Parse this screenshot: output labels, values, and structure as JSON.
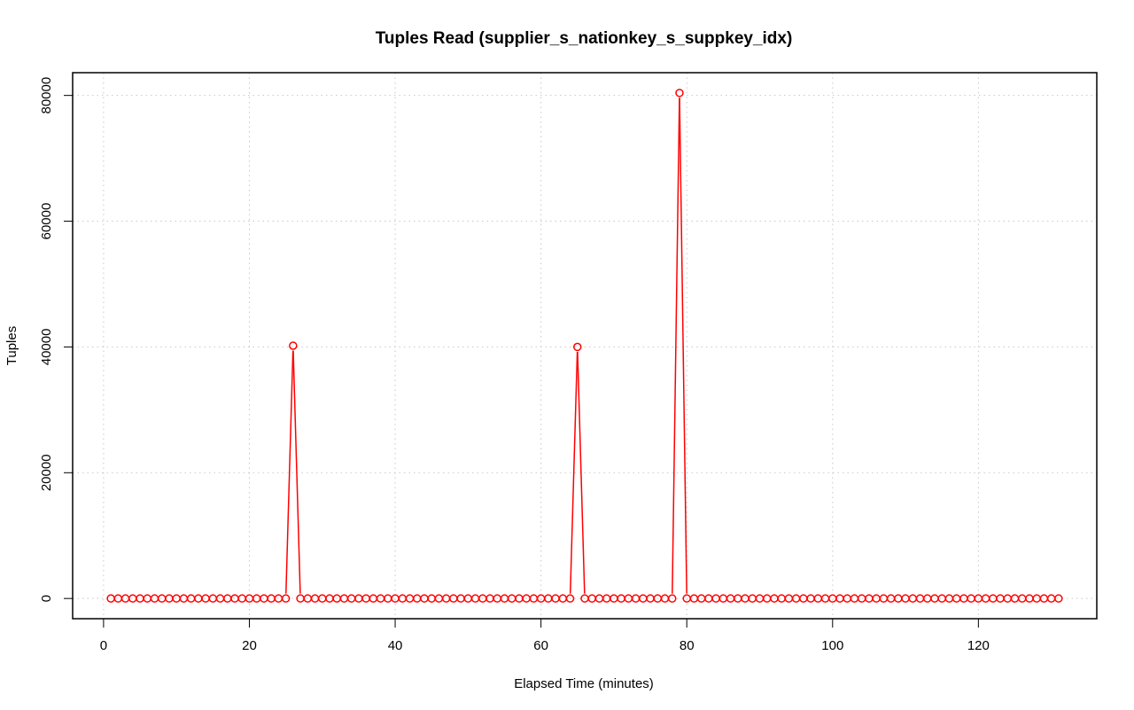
{
  "chart_data": {
    "type": "line",
    "title": "Tuples Read (supplier_s_nationkey_s_suppkey_idx)",
    "xlabel": "Elapsed Time (minutes)",
    "ylabel": "Tuples",
    "xlim": [
      -4.24,
      136.24
    ],
    "ylim": [
      -3216,
      83616
    ],
    "x_ticks": [
      0,
      20,
      40,
      60,
      80,
      100,
      120
    ],
    "y_ticks": [
      0,
      20000,
      40000,
      60000,
      80000
    ],
    "grid": true,
    "series_color": "#ff0000",
    "grid_color": "#c8c8c8",
    "series": [
      {
        "x_start": 1,
        "x_end": 131,
        "default_value": 0,
        "nonzero_points": [
          {
            "x": 26,
            "y": 40200
          },
          {
            "x": 65,
            "y": 40000
          },
          {
            "x": 79,
            "y": 80400
          }
        ]
      }
    ]
  }
}
